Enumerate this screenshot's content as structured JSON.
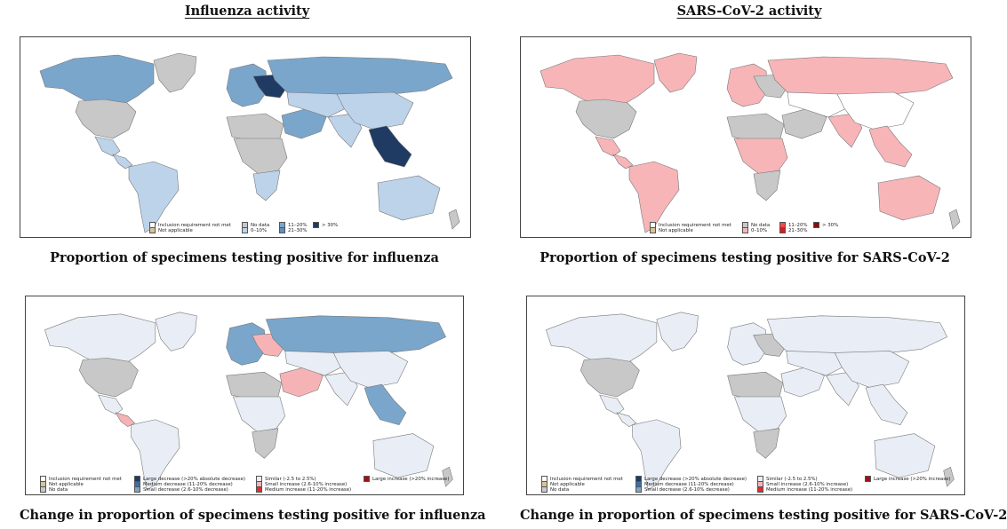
{
  "headings": {
    "left": "Influenza activity",
    "right": "SARS-CoV-2 activity"
  },
  "captions": {
    "flu_proportion": "Proportion of specimens testing positive for influenza",
    "sars_proportion": "Proportion of specimens testing positive for SARS-CoV-2",
    "flu_change": "Change in proportion of specimens testing positive for influenza",
    "sars_change": "Change in proportion of specimens testing positive for SARS-CoV-2"
  },
  "colors": {
    "inclusion": "#ffffff",
    "not_applicable": "#d6c39a",
    "no_data": "#c8c8c8",
    "flu_0_10": "#bcd3ea",
    "flu_11_20": "#7aa6cc",
    "flu_21_30": "#5f8fbb",
    "flu_gt30": "#1f3a63",
    "sars_0_10": "#f7b5b8",
    "sars_11_20": "#f04a4a",
    "sars_21_30": "#d41f1f",
    "sars_gt30": "#8b0c0c",
    "large_decrease": "#1f3a63",
    "medium_decrease": "#3f6fa0",
    "small_decrease": "#7aa6cc",
    "similar": "#e9eef6",
    "small_increase": "#f6b3b6",
    "medium_increase": "#e32b2b",
    "large_increase": "#a50f0f"
  },
  "legend_proportion": {
    "inclusion": "Inclusion requirement not met",
    "not_applicable": "Not applicable",
    "no_data": "No data",
    "r0_10": "0–10%",
    "r11_20": "11–20%",
    "r21_30": "21–30%",
    "gt30": "> 30%"
  },
  "legend_change": {
    "inclusion": "Inclusion requirement not met",
    "not_applicable": "Not applicable",
    "no_data": "No data",
    "large_decrease": "Large decrease (>20% absolute decrease)",
    "medium_decrease": "Medium decrease (11-20% decrease)",
    "small_decrease": "Small decrease (2.6-10% decrease)",
    "similar": "Similar (-2.5 to 2.5%)",
    "small_increase": "Small increase (2.6-10% increase)",
    "medium_increase": "Medium increase (11-20% increase)",
    "large_increase": "Large increase (>20% increase)"
  },
  "maps": {
    "flu_proportion": {
      "north_america": "flu_11_20",
      "usa": "no_data",
      "mexico": "flu_0_10",
      "central_america": "flu_0_10",
      "south_america": "flu_0_10",
      "greenland": "no_data",
      "europe": "flu_11_20",
      "east_europe": "flu_gt30",
      "russia": "flu_11_20",
      "africa_north": "no_data",
      "africa_central": "no_data",
      "africa_south": "flu_0_10",
      "middle_east": "flu_11_20",
      "central_asia": "flu_0_10",
      "india": "flu_0_10",
      "china": "flu_0_10",
      "se_asia": "flu_gt30",
      "australia": "flu_0_10",
      "nz": "no_data"
    },
    "sars_proportion": {
      "north_america": "sars_0_10",
      "usa": "no_data",
      "mexico": "sars_0_10",
      "central_america": "sars_0_10",
      "south_america": "sars_0_10",
      "greenland": "sars_0_10",
      "europe": "sars_0_10",
      "east_europe": "no_data",
      "russia": "sars_0_10",
      "africa_north": "no_data",
      "africa_central": "sars_0_10",
      "africa_south": "no_data",
      "middle_east": "no_data",
      "central_asia": "inclusion",
      "india": "sars_0_10",
      "china": "inclusion",
      "se_asia": "sars_0_10",
      "australia": "sars_0_10",
      "nz": "no_data"
    },
    "flu_change": {
      "north_america": "similar",
      "usa": "no_data",
      "mexico": "similar",
      "central_america": "small_increase",
      "south_america": "similar",
      "greenland": "similar",
      "europe": "small_decrease",
      "east_europe": "small_increase",
      "russia": "small_decrease",
      "africa_north": "no_data",
      "africa_central": "similar",
      "africa_south": "no_data",
      "middle_east": "small_increase",
      "central_asia": "similar",
      "india": "similar",
      "china": "similar",
      "se_asia": "small_decrease",
      "australia": "similar",
      "nz": "no_data"
    },
    "sars_change": {
      "north_america": "similar",
      "usa": "no_data",
      "mexico": "similar",
      "central_america": "similar",
      "south_america": "similar",
      "greenland": "similar",
      "europe": "similar",
      "east_europe": "no_data",
      "russia": "similar",
      "africa_north": "no_data",
      "africa_central": "similar",
      "africa_south": "no_data",
      "middle_east": "similar",
      "central_asia": "similar",
      "india": "similar",
      "china": "similar",
      "se_asia": "similar",
      "australia": "similar",
      "nz": "no_data"
    }
  }
}
